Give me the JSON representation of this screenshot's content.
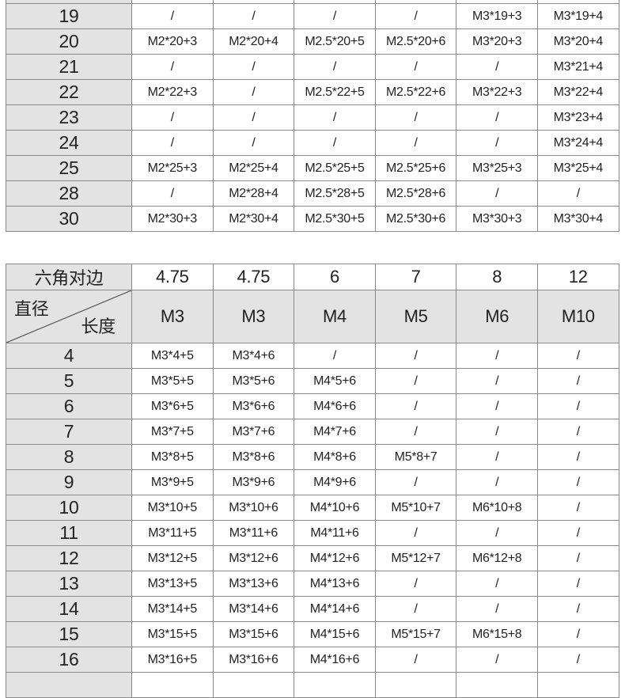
{
  "table1": {
    "rows": [
      {
        "length": "",
        "cells": [
          "",
          "",
          "",
          "",
          "",
          ""
        ]
      },
      {
        "length": "19",
        "cells": [
          "/",
          "/",
          "/",
          "/",
          "M3*19+3",
          "M3*19+4"
        ]
      },
      {
        "length": "20",
        "cells": [
          "M2*20+3",
          "M2*20+4",
          "M2.5*20+5",
          "M2.5*20+6",
          "M3*20+3",
          "M3*20+4"
        ]
      },
      {
        "length": "21",
        "cells": [
          "/",
          "/",
          "/",
          "/",
          "/",
          "M3*21+4"
        ]
      },
      {
        "length": "22",
        "cells": [
          "M2*22+3",
          "/",
          "M2.5*22+5",
          "M2.5*22+6",
          "M3*22+3",
          "M3*22+4"
        ]
      },
      {
        "length": "23",
        "cells": [
          "/",
          "/",
          "/",
          "/",
          "/",
          "M3*23+4"
        ]
      },
      {
        "length": "24",
        "cells": [
          "/",
          "/",
          "/",
          "/",
          "/",
          "M3*24+4"
        ]
      },
      {
        "length": "25",
        "cells": [
          "M2*25+3",
          "M2*25+4",
          "M2.5*25+5",
          "M2.5*25+6",
          "M3*25+3",
          "M3*25+4"
        ]
      },
      {
        "length": "28",
        "cells": [
          "/",
          "M2*28+4",
          "M2.5*28+5",
          "M2.5*28+6",
          "/",
          "/"
        ]
      },
      {
        "length": "30",
        "cells": [
          "M2*30+3",
          "M2*30+4",
          "M2.5*30+5",
          "M2.5*30+6",
          "M3*30+3",
          "M3*30+4"
        ]
      }
    ]
  },
  "table2": {
    "hex_label": "六角对边",
    "hex_values": [
      "4.75",
      "4.75",
      "6",
      "7",
      "8",
      "12"
    ],
    "diameter_label": "直径",
    "length_label": "长度",
    "diameters": [
      "M3",
      "M3",
      "M4",
      "M5",
      "M6",
      "M10"
    ],
    "rows": [
      {
        "length": "4",
        "cells": [
          "M3*4+5",
          "M3*4+6",
          "/",
          "/",
          "/",
          "/"
        ]
      },
      {
        "length": "5",
        "cells": [
          "M3*5+5",
          "M3*5+6",
          "M4*5+6",
          "/",
          "/",
          "/"
        ]
      },
      {
        "length": "6",
        "cells": [
          "M3*6+5",
          "M3*6+6",
          "M4*6+6",
          "/",
          "/",
          "/"
        ]
      },
      {
        "length": "7",
        "cells": [
          "M3*7+5",
          "M3*7+6",
          "M4*7+6",
          "/",
          "/",
          "/"
        ]
      },
      {
        "length": "8",
        "cells": [
          "M3*8+5",
          "M3*8+6",
          "M4*8+6",
          "M5*8+7",
          "/",
          "/"
        ]
      },
      {
        "length": "9",
        "cells": [
          "M3*9+5",
          "M3*9+6",
          "M4*9+6",
          "/",
          "/",
          "/"
        ]
      },
      {
        "length": "10",
        "cells": [
          "M3*10+5",
          "M3*10+6",
          "M4*10+6",
          "M5*10+7",
          "M6*10+8",
          "/"
        ]
      },
      {
        "length": "11",
        "cells": [
          "M3*11+5",
          "M3*11+6",
          "M4*11+6",
          "/",
          "/",
          "/"
        ]
      },
      {
        "length": "12",
        "cells": [
          "M3*12+5",
          "M3*12+6",
          "M4*12+6",
          "M5*12+7",
          "M6*12+8",
          "/"
        ]
      },
      {
        "length": "13",
        "cells": [
          "M3*13+5",
          "M3*13+6",
          "M4*13+6",
          "/",
          "/",
          "/"
        ]
      },
      {
        "length": "14",
        "cells": [
          "M3*14+5",
          "M3*14+6",
          "M4*14+6",
          "/",
          "/",
          "/"
        ]
      },
      {
        "length": "15",
        "cells": [
          "M3*15+5",
          "M3*15+6",
          "M4*15+6",
          "M5*15+7",
          "M6*15+8",
          "/"
        ]
      },
      {
        "length": "16",
        "cells": [
          "M3*16+5",
          "M3*16+6",
          "M4*16+6",
          "/",
          "/",
          "/"
        ]
      },
      {
        "length": "",
        "cells": [
          "",
          "",
          "",
          "",
          "",
          ""
        ]
      }
    ]
  }
}
